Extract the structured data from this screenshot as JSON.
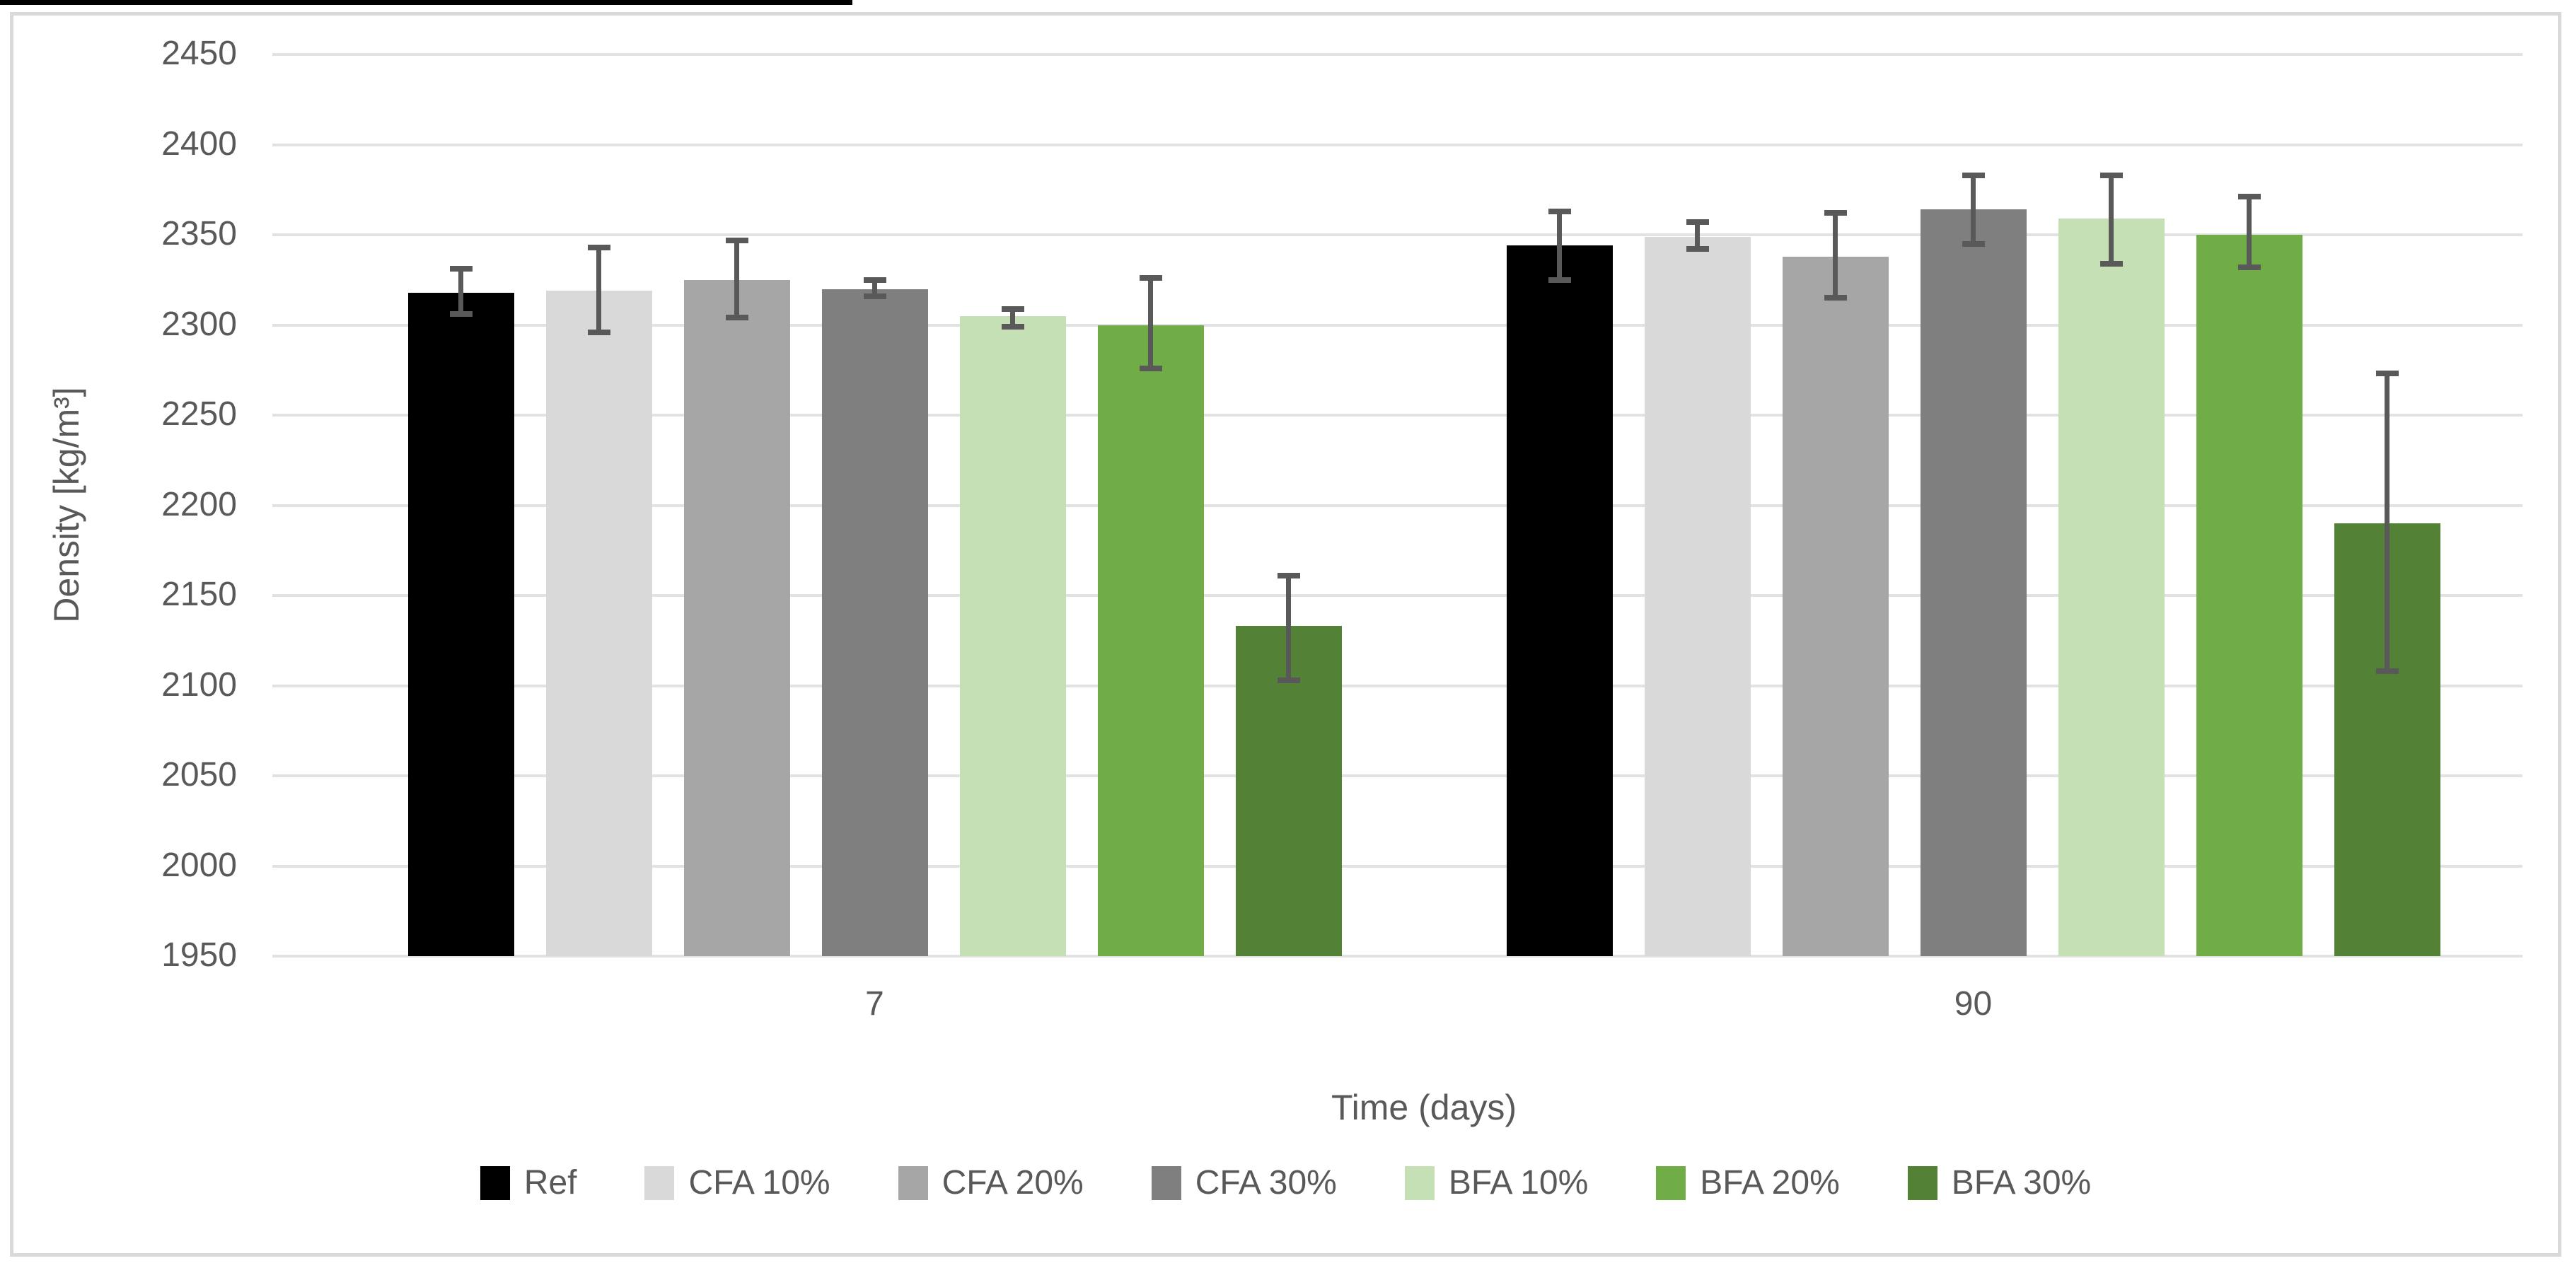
{
  "style": {
    "gridline_color": "#e2e2e2",
    "border_color": "#d9d9d9",
    "error_bar_color": "#595959",
    "text_color": "#595959",
    "background": "#ffffff"
  },
  "chart_data": {
    "type": "bar",
    "title": "",
    "xlabel": "Time (days)",
    "ylabel": "Density [kg/m³]",
    "categories": [
      "7",
      "90"
    ],
    "ylim": [
      1950,
      2450
    ],
    "ytick_step": 50,
    "ytick_labels": [
      "1950",
      "2000",
      "2050",
      "2100",
      "2150",
      "2200",
      "2250",
      "2300",
      "2350",
      "2400",
      "2450"
    ],
    "grid": true,
    "legend_position": "bottom",
    "error_bars": true,
    "series": [
      {
        "name": "Ref",
        "color": "#000000",
        "values": [
          2318,
          2344
        ],
        "error_top": [
          2331,
          2363
        ],
        "error_bottom": [
          2306,
          2325
        ]
      },
      {
        "name": "CFA 10%",
        "color": "#d9d9d9",
        "values": [
          2319,
          2349
        ],
        "error_top": [
          2343,
          2357
        ],
        "error_bottom": [
          2296,
          2342
        ]
      },
      {
        "name": "CFA 20%",
        "color": "#a6a6a6",
        "values": [
          2325,
          2338
        ],
        "error_top": [
          2347,
          2362
        ],
        "error_bottom": [
          2304,
          2315
        ]
      },
      {
        "name": "CFA 30%",
        "color": "#7f7f7f",
        "values": [
          2320,
          2364
        ],
        "error_top": [
          2325,
          2383
        ],
        "error_bottom": [
          2316,
          2345
        ]
      },
      {
        "name": "BFA 10%",
        "color": "#c5e0b4",
        "values": [
          2305,
          2359
        ],
        "error_top": [
          2309,
          2383
        ],
        "error_bottom": [
          2299,
          2334
        ]
      },
      {
        "name": "BFA 20%",
        "color": "#70ad47",
        "values": [
          2300,
          2350
        ],
        "error_top": [
          2326,
          2371
        ],
        "error_bottom": [
          2276,
          2332
        ]
      },
      {
        "name": "BFA 30%",
        "color": "#538135",
        "values": [
          2133,
          2190
        ],
        "error_top": [
          2161,
          2273
        ],
        "error_bottom": [
          2103,
          2108
        ]
      }
    ]
  }
}
